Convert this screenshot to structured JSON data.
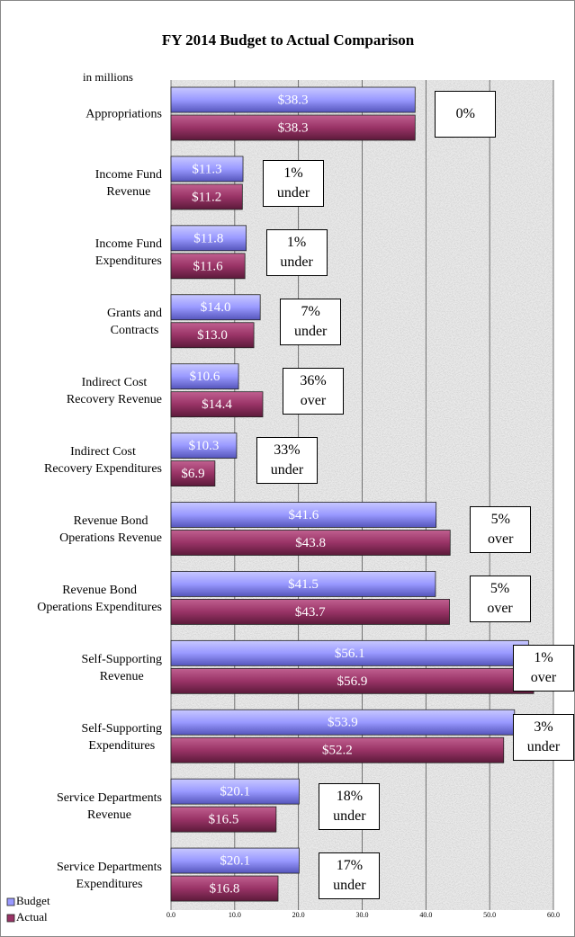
{
  "chart_data": {
    "type": "hbar",
    "title": "FY 2014 Budget to Actual Comparison",
    "unit_note": "in millions",
    "categories": [
      "Appropriations",
      "Income Fund\nRevenue",
      "Income Fund\nExpenditures",
      "Grants and\nContracts",
      "Indirect Cost\nRecovery Revenue",
      "Indirect Cost\nRecovery Expenditures",
      "Revenue Bond\nOperations Revenue",
      "Revenue Bond\nOperations Expenditures",
      "Self-Supporting\nRevenue",
      "Self-Supporting\nExpenditures",
      "Service Departments\nRevenue",
      "Service Departments\nExpenditures"
    ],
    "series": [
      {
        "name": "Budget",
        "color": "#9999ff",
        "values": [
          38.3,
          11.3,
          11.8,
          14.0,
          10.6,
          10.3,
          41.6,
          41.5,
          56.1,
          53.9,
          20.1,
          20.1
        ],
        "value_labels": [
          "$38.3",
          "$11.3",
          "$11.8",
          "$14.0",
          "$10.6",
          "$10.3",
          "$41.6",
          "$41.5",
          "$56.1",
          "$53.9",
          "$20.1",
          "$20.1"
        ]
      },
      {
        "name": "Actual",
        "color": "#993366",
        "values": [
          38.3,
          11.2,
          11.6,
          13.0,
          14.4,
          6.9,
          43.8,
          43.7,
          56.9,
          52.2,
          16.5,
          16.8
        ],
        "value_labels": [
          "$38.3",
          "$11.2",
          "$11.6",
          "$13.0",
          "$14.4",
          "$6.9",
          "$43.8",
          "$43.7",
          "$56.9",
          "$52.2",
          "$16.5",
          "$16.8"
        ]
      }
    ],
    "annotations": [
      "0%",
      "1%\nunder",
      "1%\nunder",
      "7%\nunder",
      "36%\nover",
      "33%\nunder",
      "5%\nover",
      "5%\nover",
      "1%\nover",
      "3%\nunder",
      "18%\nunder",
      "17%\nunder"
    ],
    "xlim": [
      0,
      60
    ],
    "xticks": [
      {
        "value": 0,
        "label": "0.0"
      },
      {
        "value": 10,
        "label": "10.0"
      },
      {
        "value": 20,
        "label": "20.0"
      },
      {
        "value": 30,
        "label": "30.0"
      },
      {
        "value": 40,
        "label": "40.0"
      },
      {
        "value": 50,
        "label": "50.0"
      },
      {
        "value": 60,
        "label": "60.0"
      }
    ],
    "grid": true
  }
}
